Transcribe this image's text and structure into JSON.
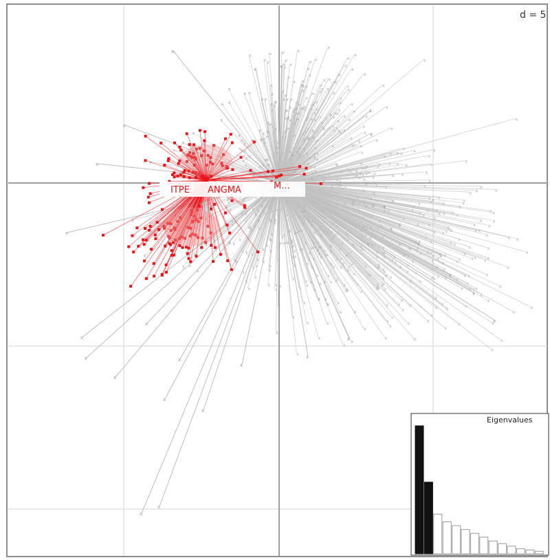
{
  "scale_label": "d = 5",
  "chart_data": {
    "type": "scatter",
    "title": "",
    "xlabel": "",
    "ylabel": "",
    "xlim": [
      -4,
      4.3
    ],
    "ylim": [
      -5.5,
      3.1
    ],
    "grid": true,
    "group_labels": [
      "ITPE",
      "ANGMA",
      "M..."
    ],
    "highlight_color": "#e8151b",
    "background_color": "#c2c2c2",
    "inset": {
      "title": "Eigenvalues",
      "type": "bar",
      "values": [
        1.0,
        0.56,
        0.31,
        0.25,
        0.22,
        0.19,
        0.16,
        0.13,
        0.1,
        0.08,
        0.06,
        0.04,
        0.03,
        0.02
      ],
      "highlighted_count": 2
    }
  }
}
